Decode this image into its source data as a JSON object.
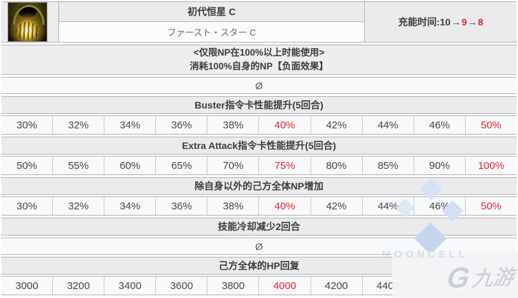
{
  "skill": {
    "name_cn": "初代恒星 C",
    "name_jp": "ファースト・スター C",
    "cooldown_label": "充能时间: ",
    "cooldown": {
      "base": "10",
      "mid": "9",
      "max": "8",
      "arrow": "→"
    },
    "condition_line1": "<仅限NP在100%以上时能使用>",
    "condition_line2": "消耗100%自身的NP【负面效果】",
    "empty_symbol": "Ø"
  },
  "effects": [
    {
      "title": "Buster指令卡性能提升(5回合)",
      "values": [
        "30%",
        "32%",
        "34%",
        "36%",
        "38%",
        "40%",
        "42%",
        "44%",
        "46%",
        "50%"
      ],
      "red_indices": [
        5,
        9
      ],
      "empty_row_after": false
    },
    {
      "title": "Extra Attack指令卡性能提升(5回合)",
      "values": [
        "50%",
        "55%",
        "60%",
        "65%",
        "70%",
        "75%",
        "80%",
        "85%",
        "90%",
        "100%"
      ],
      "red_indices": [
        5,
        9
      ],
      "empty_row_after": false
    },
    {
      "title": "除自身以外的己方全体NP增加",
      "values": [
        "30%",
        "32%",
        "34%",
        "36%",
        "38%",
        "40%",
        "42%",
        "44%",
        "46%",
        "50%"
      ],
      "red_indices": [
        5,
        9
      ],
      "empty_row_after": false
    },
    {
      "title": "技能冷却减少2回合",
      "values": null,
      "red_indices": [],
      "empty_row_after": true
    },
    {
      "title": "己方全体的HP回复",
      "values": [
        "3000",
        "3200",
        "3400",
        "3600",
        "3800",
        "4000",
        "4200",
        "4400",
        "",
        ""
      ],
      "red_indices": [
        5
      ],
      "empty_row_after": false
    }
  ],
  "watermarks": {
    "mooncell_text": "MOONCELL",
    "jiuyou_g": "G",
    "jiuyou_text": "九游"
  },
  "colors": {
    "red_value": "#e8242d",
    "header_bg": "#ebebee",
    "row_bg": "#f8f9fb",
    "border": "#b2b2b6",
    "watermark_blue": "#c3d6ee"
  }
}
